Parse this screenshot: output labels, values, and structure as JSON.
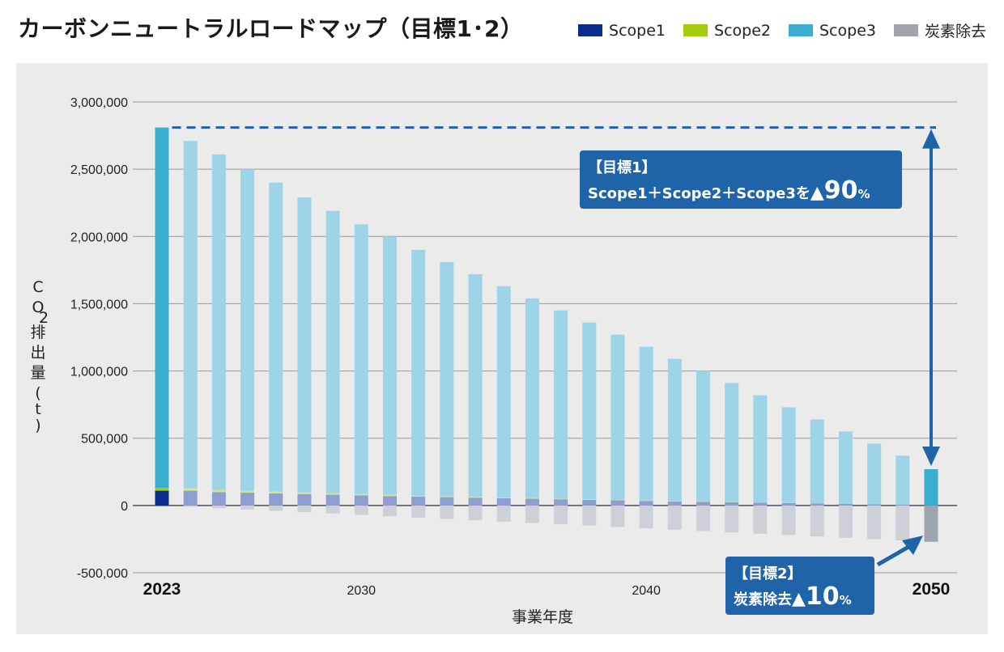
{
  "title": "カーボンニュートラルロードマップ（目標1･2）",
  "legend": [
    {
      "label": "Scope1",
      "color": "#0b2d8c"
    },
    {
      "label": "Scope2",
      "color": "#a5cc0a"
    },
    {
      "label": "Scope3",
      "color": "#3badd0"
    },
    {
      "label": "炭素除去",
      "color": "#9ea5ae"
    }
  ],
  "chart_data": {
    "type": "bar",
    "stacked": true,
    "xlabel": "事業年度",
    "ylabel_chars": [
      "C",
      "O",
      "2",
      "排",
      "出",
      "量",
      "(",
      "t",
      ")"
    ],
    "ylim": [
      -500000,
      3000000
    ],
    "yticks": [
      3000000,
      2500000,
      2000000,
      1500000,
      1000000,
      500000,
      0,
      -500000
    ],
    "ytick_labels": [
      "3,000,000",
      "2,500,000",
      "2,000,000",
      "1,500,000",
      "1,000,000",
      "500,000",
      "0",
      "-500,000"
    ],
    "years": [
      2023,
      2024,
      2025,
      2026,
      2027,
      2028,
      2029,
      2030,
      2031,
      2032,
      2033,
      2034,
      2035,
      2036,
      2037,
      2038,
      2039,
      2040,
      2041,
      2042,
      2043,
      2044,
      2045,
      2046,
      2047,
      2048,
      2049,
      2050
    ],
    "xtick_labels": [
      {
        "year": 2023,
        "label": "2023",
        "bold": true
      },
      {
        "year": 2030,
        "label": "2030",
        "bold": false
      },
      {
        "year": 2040,
        "label": "2040",
        "bold": false
      },
      {
        "year": 2050,
        "label": "2050",
        "bold": true
      }
    ],
    "series": [
      {
        "name": "Scope1",
        "colors": {
          "base": "#0b2d8c",
          "projected": "#8d9ed0"
        },
        "values": [
          110000,
          110000,
          100000,
          95000,
          90000,
          85000,
          80000,
          75000,
          70000,
          65000,
          62000,
          58000,
          54000,
          50000,
          46000,
          42000,
          38000,
          34000,
          30000,
          27000,
          24000,
          21000,
          18000,
          15000,
          12000,
          9000,
          6000,
          0
        ]
      },
      {
        "name": "Scope2",
        "colors": {
          "base": "#a5cc0a",
          "projected": "#d5e68a"
        },
        "values": [
          20000,
          18000,
          16000,
          14000,
          13000,
          12000,
          11000,
          10000,
          9000,
          8000,
          7000,
          6000,
          5000,
          5000,
          4000,
          4000,
          3000,
          3000,
          3000,
          2000,
          2000,
          2000,
          1000,
          1000,
          1000,
          1000,
          0,
          0
        ]
      },
      {
        "name": "Scope3",
        "colors": {
          "base": "#3badd0",
          "projected": "#9dd4e8"
        },
        "values": [
          2680000,
          2582000,
          2494000,
          2391000,
          2297000,
          2193000,
          2099000,
          2005000,
          1921000,
          1827000,
          1741000,
          1656000,
          1571000,
          1485000,
          1400000,
          1314000,
          1229000,
          1143000,
          1057000,
          971000,
          884000,
          797000,
          711000,
          624000,
          537000,
          450000,
          364000,
          270000
        ]
      },
      {
        "name": "炭素除去",
        "colors": {
          "base": "#9ea5ae",
          "projected": "#cdd1d7"
        },
        "values": [
          0,
          -10000,
          -20000,
          -30000,
          -40000,
          -50000,
          -60000,
          -70000,
          -80000,
          -90000,
          -100000,
          -110000,
          -120000,
          -130000,
          -140000,
          -150000,
          -160000,
          -170000,
          -180000,
          -190000,
          -200000,
          -210000,
          -220000,
          -230000,
          -240000,
          -250000,
          -260000,
          -270000
        ]
      }
    ],
    "dashed_line_value": 2810000,
    "annotations": [
      {
        "line1": "【目標1】",
        "line2_prefix": "Scope1＋Scope2＋Scope3を",
        "line2_triangle": "▲",
        "line2_value": "90",
        "line2_unit": "%",
        "color": "#1f63a8"
      },
      {
        "line1": "【目標2】",
        "line2_prefix": "炭素除去",
        "line2_triangle": "▲",
        "line2_value": "10",
        "line2_unit": "%",
        "color": "#1f63a8"
      }
    ]
  }
}
